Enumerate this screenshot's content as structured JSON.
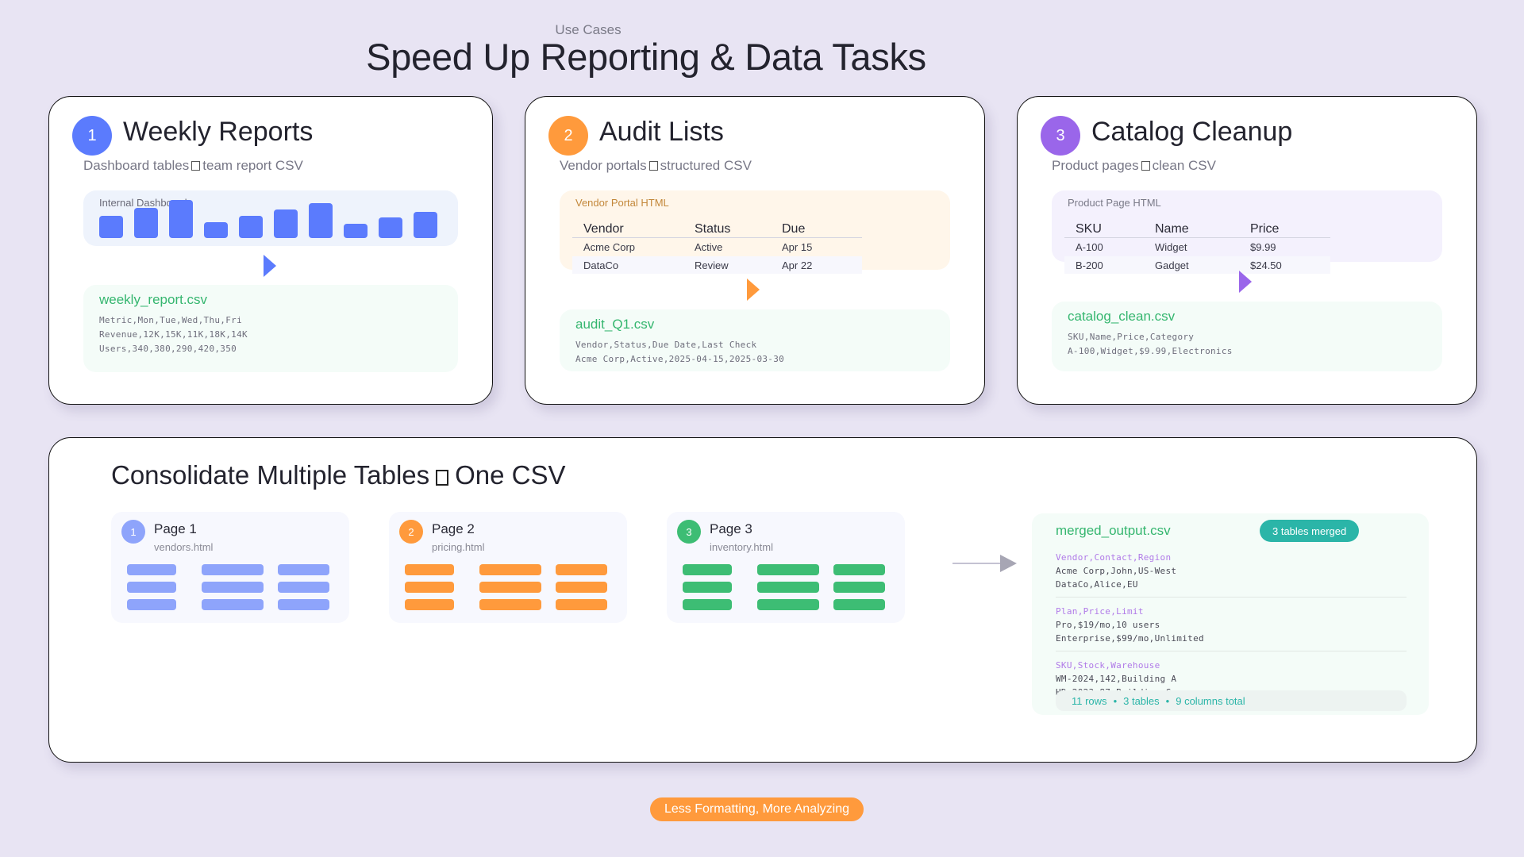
{
  "header": {
    "eyebrow": "Use Cases",
    "title": "Speed Up Reporting & Data Tasks"
  },
  "colors": {
    "background": "#e8e4f3",
    "blue": "#5b7bfd",
    "orange": "#ff9a3c",
    "purple": "#9a66ea",
    "green": "#35b66f",
    "teal": "#2bb5a8",
    "light_blue": "#8ea4fb"
  },
  "cards": [
    {
      "number": "1",
      "title": "Weekly Reports",
      "subtitle_left": "Dashboard tables",
      "subtitle_right": "team report CSV",
      "source_label": "Internal Dashboard",
      "bars": [
        28,
        38,
        48,
        20,
        28,
        36,
        44,
        18,
        26,
        33
      ],
      "csv_name": "weekly_report.csv",
      "csv_lines": [
        "Metric,Mon,Tue,Wed,Thu,Fri",
        "Revenue,12K,15K,11K,18K,14K",
        "Users,340,380,290,420,350"
      ]
    },
    {
      "number": "2",
      "title": "Audit Lists",
      "subtitle_left": "Vendor portals",
      "subtitle_right": "structured CSV",
      "source_label": "Vendor Portal HTML",
      "table": {
        "headers": [
          "Vendor",
          "Status",
          "Due"
        ],
        "rows": [
          [
            "Acme Corp",
            "Active",
            "Apr 15"
          ],
          [
            "DataCo",
            "Review",
            "Apr 22"
          ]
        ]
      },
      "csv_name": "audit_Q1.csv",
      "csv_lines": [
        "Vendor,Status,Due Date,Last Check",
        "Acme Corp,Active,2025-04-15,2025-03-30"
      ]
    },
    {
      "number": "3",
      "title": "Catalog Cleanup",
      "subtitle_left": "Product pages",
      "subtitle_right": "clean CSV",
      "source_label": "Product Page HTML",
      "table": {
        "headers": [
          "SKU",
          "Name",
          "Price"
        ],
        "rows": [
          [
            "A-100",
            "Widget",
            "$9.99"
          ],
          [
            "B-200",
            "Gadget",
            "$24.50"
          ]
        ]
      },
      "csv_name": "catalog_clean.csv",
      "csv_lines": [
        "SKU,Name,Price,Category",
        "A-100,Widget,$9.99,Electronics"
      ]
    }
  ],
  "consolidate": {
    "title_left": "Consolidate Multiple Tables",
    "title_right": "One CSV",
    "pages": [
      {
        "number": "1",
        "title": "Page 1",
        "file": "vendors.html"
      },
      {
        "number": "2",
        "title": "Page 2",
        "file": "pricing.html"
      },
      {
        "number": "3",
        "title": "Page 3",
        "file": "inventory.html"
      }
    ],
    "output": {
      "file": "merged_output.csv",
      "badge": "3 tables merged",
      "sections": [
        {
          "header": "Vendor,Contact,Region",
          "lines": [
            "Acme Corp,John,US-West",
            "DataCo,Alice,EU"
          ]
        },
        {
          "header": "Plan,Price,Limit",
          "lines": [
            "Pro,$19/mo,10 users",
            "Enterprise,$99/mo,Unlimited"
          ]
        },
        {
          "header": "SKU,Stock,Warehouse",
          "lines": [
            "WM-2024,142,Building A",
            "HD-2023,87,Building C"
          ]
        }
      ],
      "footer": {
        "rows": "11 rows",
        "tables": "3 tables",
        "columns": "9 columns total",
        "sep": "•"
      }
    }
  },
  "cta": {
    "label": "Less Formatting, More Analyzing"
  }
}
